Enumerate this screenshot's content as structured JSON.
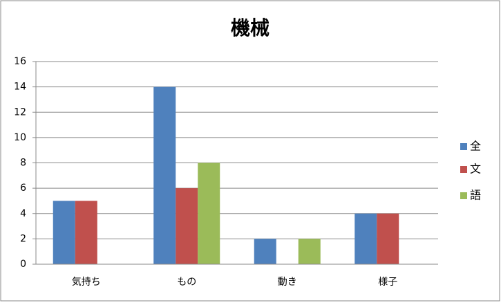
{
  "chart_data": {
    "type": "bar",
    "title": "機械",
    "categories": [
      "気持ち",
      "もの",
      "動き",
      "様子"
    ],
    "series": [
      {
        "name": "全",
        "color": "#4f81bd",
        "values": [
          5,
          14,
          2,
          4
        ]
      },
      {
        "name": "文",
        "color": "#c0504d",
        "values": [
          5,
          6,
          0,
          4
        ]
      },
      {
        "name": "語",
        "color": "#9bbb59",
        "values": [
          0,
          8,
          2,
          0
        ]
      }
    ],
    "ylim": [
      0,
      16
    ],
    "yticks": [
      0,
      2,
      4,
      6,
      8,
      10,
      12,
      14,
      16
    ],
    "grid": true,
    "legend": "right"
  }
}
